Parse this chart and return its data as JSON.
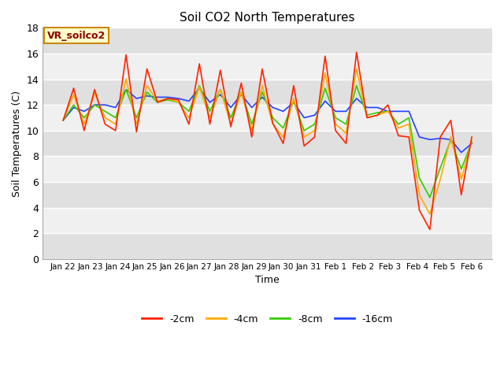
{
  "title": "Soil CO2 North Temperatures",
  "xlabel": "Time",
  "ylabel": "Soil Temperatures (C)",
  "ylim": [
    0,
    18
  ],
  "yticks": [
    0,
    2,
    4,
    6,
    8,
    10,
    12,
    14,
    16,
    18
  ],
  "fig_bg_color": "#ffffff",
  "plot_bg_color": "#f0f0f0",
  "band_color_light": "#f0f0f0",
  "band_color_dark": "#e0e0e0",
  "colors": {
    "-2cm": "#ff2200",
    "-4cm": "#ffaa00",
    "-8cm": "#33cc00",
    "-16cm": "#2244ff"
  },
  "legend_label": "VR_soilco2",
  "x_tick_labels": [
    "Jan 22",
    "Jan 23",
    "Jan 24",
    "Jan 25",
    "Jan 26",
    "Jan 27",
    "Jan 28",
    "Jan 29",
    "Jan 30",
    "Jan 31",
    "Feb 1",
    "Feb 2",
    "Feb 3",
    "Feb 4",
    "Feb 5",
    "Feb 6"
  ],
  "series": {
    "-2cm": [
      10.8,
      13.3,
      10.0,
      13.2,
      10.5,
      10.0,
      15.9,
      9.9,
      14.8,
      12.2,
      12.5,
      12.4,
      10.5,
      15.2,
      10.5,
      14.7,
      10.3,
      13.7,
      9.5,
      14.8,
      10.6,
      9.0,
      13.5,
      8.8,
      9.5,
      15.8,
      10.0,
      9.0,
      16.1,
      11.0,
      11.2,
      12.0,
      9.6,
      9.5,
      3.8,
      2.3,
      9.5,
      10.8,
      5.0,
      9.5
    ],
    "-4cm": [
      10.8,
      12.8,
      10.5,
      12.9,
      11.0,
      10.5,
      14.0,
      10.5,
      13.5,
      12.3,
      12.5,
      12.2,
      11.0,
      13.4,
      11.0,
      13.2,
      10.5,
      13.0,
      10.0,
      13.5,
      10.5,
      9.5,
      12.5,
      9.5,
      10.0,
      14.5,
      10.5,
      9.8,
      14.8,
      11.0,
      11.2,
      11.5,
      10.2,
      10.5,
      5.0,
      3.5,
      6.2,
      9.5,
      6.2,
      9.2
    ],
    "-8cm": [
      10.8,
      12.0,
      11.0,
      12.0,
      11.5,
      11.0,
      13.2,
      11.0,
      13.0,
      12.2,
      12.4,
      12.2,
      11.5,
      13.5,
      11.5,
      13.2,
      11.0,
      13.0,
      10.5,
      13.0,
      11.0,
      10.2,
      12.3,
      10.0,
      10.5,
      13.3,
      11.0,
      10.5,
      13.5,
      11.2,
      11.4,
      11.5,
      10.5,
      11.0,
      6.3,
      4.8,
      7.1,
      9.3,
      7.0,
      9.1
    ],
    "-16cm": [
      10.8,
      11.8,
      11.5,
      12.0,
      12.0,
      11.8,
      13.2,
      12.5,
      12.7,
      12.6,
      12.6,
      12.5,
      12.3,
      13.3,
      12.2,
      12.8,
      11.8,
      12.8,
      11.8,
      12.6,
      11.8,
      11.5,
      12.2,
      11.0,
      11.2,
      12.3,
      11.5,
      11.5,
      12.5,
      11.8,
      11.8,
      11.5,
      11.5,
      11.5,
      9.5,
      9.3,
      9.4,
      9.3,
      8.3,
      9.0
    ]
  }
}
